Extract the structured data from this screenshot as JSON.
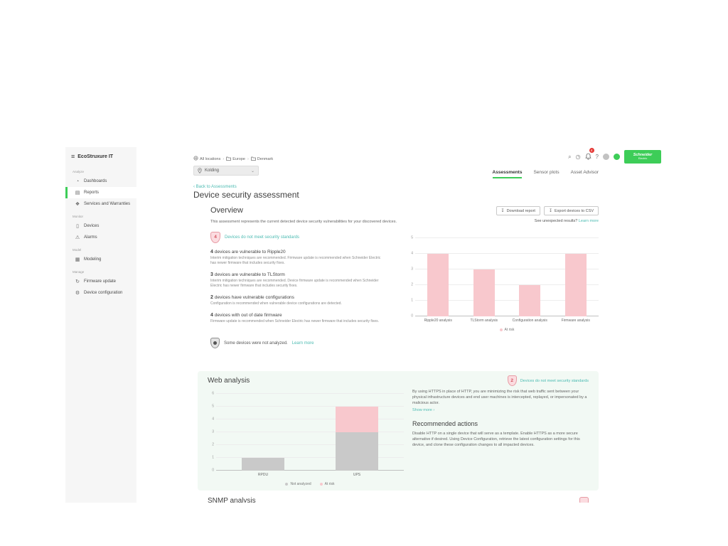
{
  "app": {
    "brand": "EcoStruxure IT"
  },
  "topbar": {
    "breadcrumb": [
      {
        "label": "All locations",
        "icon": "globe-icon"
      },
      {
        "label": "Europe",
        "icon": "folder-icon"
      },
      {
        "label": "Denmark",
        "icon": "folder-icon"
      }
    ],
    "location": "Kolding",
    "notification_count": "4",
    "brand_logo": {
      "line1": "Schneider",
      "line2": "Electric"
    }
  },
  "sidebar": {
    "sections": [
      {
        "label": "Analyze",
        "items": [
          {
            "label": "Dashboards",
            "icon": "dashboard-icon",
            "glyph": "◔",
            "active": false
          },
          {
            "label": "Reports",
            "icon": "report-icon",
            "glyph": "▤",
            "active": true
          },
          {
            "label": "Services and Warranties",
            "icon": "warranty-icon",
            "glyph": "❖",
            "active": false
          }
        ]
      },
      {
        "label": "Monitor",
        "items": [
          {
            "label": "Devices",
            "icon": "device-icon",
            "glyph": "▯",
            "active": false
          },
          {
            "label": "Alarms",
            "icon": "alarm-icon",
            "glyph": "⚠",
            "active": false
          }
        ]
      },
      {
        "label": "Model",
        "items": [
          {
            "label": "Modeling",
            "icon": "modeling-icon",
            "glyph": "▦",
            "active": false
          }
        ]
      },
      {
        "label": "Manage",
        "items": [
          {
            "label": "Firmware update",
            "icon": "firmware-update-icon",
            "glyph": "↻",
            "active": false
          },
          {
            "label": "Device configuration",
            "icon": "device-configuration-icon",
            "glyph": "⚙",
            "active": false
          }
        ]
      }
    ]
  },
  "tabs": [
    {
      "label": "Assessments",
      "active": true
    },
    {
      "label": "Sensor plots",
      "active": false
    },
    {
      "label": "Asset Advisor",
      "active": false
    }
  ],
  "page": {
    "back_link": "Back to Assessments",
    "title": "Device security assessment"
  },
  "overview": {
    "heading": "Overview",
    "download_button": "Download report",
    "export_button": "Export devices to CSV",
    "unexpected_text": "See unexpected results?",
    "unexpected_link": "Learn more",
    "description": "This assessment represents the current detected device security vulnerabilities for your discovered devices.",
    "risk_badge": {
      "count": "4",
      "label": "Devices do not meet security standards"
    },
    "vulnerabilities": [
      {
        "count": "4",
        "text": "devices are vulnerable to Ripple20",
        "description": "Interim mitigation techniques are recommended. Firmware update is recommended when Schneider Electric has newer firmware that includes security fixes."
      },
      {
        "count": "3",
        "text": "devices are vulnerable to TLStorm",
        "description": "Interim mitigation techniques are recommended. Device firmware update is recommended when Schneider Electric has newer firmware that includes security fixes."
      },
      {
        "count": "2",
        "text": "devices have vulnerable configurations",
        "description": "Configuration is recommended when vulnerable device configurations are detected."
      },
      {
        "count": "4",
        "text": "devices with out of date firmware",
        "description": "Firmware update is recommended when Schneider Electric has newer firmware that includes security fixes."
      }
    ],
    "not_analyzed_text": "Some devices were not analyzed.",
    "not_analyzed_link": "Learn more"
  },
  "web_analysis": {
    "heading": "Web analysis",
    "risk_badge": {
      "count": "2",
      "label": "Devices do not meet security standards"
    },
    "description": "By using HTTPS in place of HTTP, you are minimizing the risk that web traffic sent between your physical infrastructure devices and end user machines is intercepted, replayed, or impersonated by a malicious actor.",
    "show_more": "Show more",
    "recommended_heading": "Recommended actions",
    "recommended_text": "Disable HTTP on a single device that will serve as a template. Enable HTTPS as a more secure alternative if desired. Using Device Configuration, retrieve the latest configuration settings for this device, and clone these configuration changes to all impacted devices."
  },
  "snmp": {
    "heading": "SNMP analysis"
  },
  "colors": {
    "accent_green": "#3dcd58",
    "teal_link": "#4cbbb2",
    "bar_pink": "#f8c8cd",
    "bar_gray": "#c9c9c9",
    "shield_fill": "#fbdce0",
    "shield_border": "#e79ba4",
    "notification_red": "#e53935"
  },
  "chart_data": [
    {
      "type": "bar",
      "title": "Overview security analysis",
      "categories": [
        "Ripple20 analysis",
        "TLStorm analysis",
        "Configuration analysis",
        "Firmware analysis"
      ],
      "series": [
        {
          "name": "At risk",
          "color": "#f8c8cd",
          "values": [
            4,
            3,
            2,
            4
          ]
        }
      ],
      "xlabel": "",
      "ylabel": "",
      "ylim": [
        0,
        5
      ],
      "yticks": [
        0,
        1,
        2,
        3,
        4,
        5
      ],
      "grid": true,
      "legend_position": "bottom"
    },
    {
      "type": "bar",
      "stacked": true,
      "title": "Web analysis",
      "categories": [
        "RPDU",
        "UPS"
      ],
      "series": [
        {
          "name": "Not analyzed",
          "color": "#c9c9c9",
          "values": [
            1,
            3
          ]
        },
        {
          "name": "At risk",
          "color": "#f8c8cd",
          "values": [
            0,
            2
          ]
        }
      ],
      "xlabel": "",
      "ylabel": "",
      "ylim": [
        0,
        6
      ],
      "yticks": [
        0,
        1,
        2,
        3,
        4,
        5,
        6
      ],
      "grid": true,
      "legend_position": "bottom"
    }
  ]
}
